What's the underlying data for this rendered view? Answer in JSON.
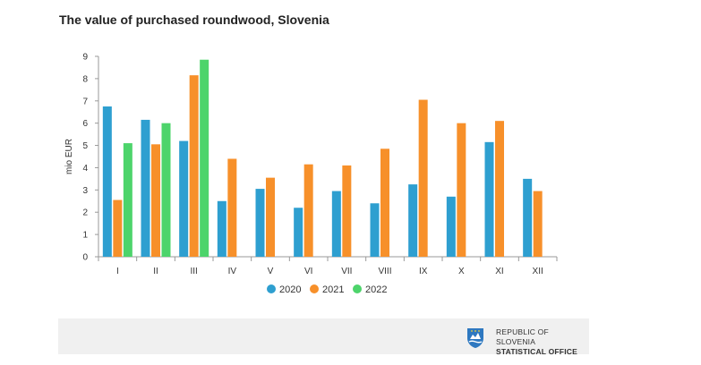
{
  "title": "The value of purchased roundwood, Slovenia",
  "chart_data": {
    "type": "bar",
    "categories": [
      "I",
      "II",
      "III",
      "IV",
      "V",
      "VI",
      "VII",
      "VIII",
      "IX",
      "X",
      "XI",
      "XII"
    ],
    "series": [
      {
        "name": "2020",
        "color": "#2e9fd0",
        "values": [
          6.75,
          6.15,
          5.2,
          2.5,
          3.05,
          2.2,
          2.95,
          2.4,
          3.25,
          2.7,
          5.15,
          3.5
        ]
      },
      {
        "name": "2021",
        "color": "#f7902a",
        "values": [
          2.55,
          5.05,
          8.15,
          4.4,
          3.55,
          4.15,
          4.1,
          4.85,
          7.05,
          6.0,
          6.1,
          2.95
        ]
      },
      {
        "name": "2022",
        "color": "#4dd46b",
        "values": [
          5.1,
          6.0,
          8.85,
          null,
          null,
          null,
          null,
          null,
          null,
          null,
          null,
          null
        ]
      }
    ],
    "ylabel": "mio EUR",
    "xlabel": "",
    "ylim": [
      0,
      9
    ],
    "yticks": [
      0,
      1,
      2,
      3,
      4,
      5,
      6,
      7,
      8,
      9
    ],
    "grid": false,
    "legend": "bottom"
  },
  "footer": {
    "line1": "REPUBLIC OF SLOVENIA",
    "line2": "STATISTICAL OFFICE"
  },
  "icons": {
    "logo": "slovenia-coat-of-arms-icon"
  }
}
